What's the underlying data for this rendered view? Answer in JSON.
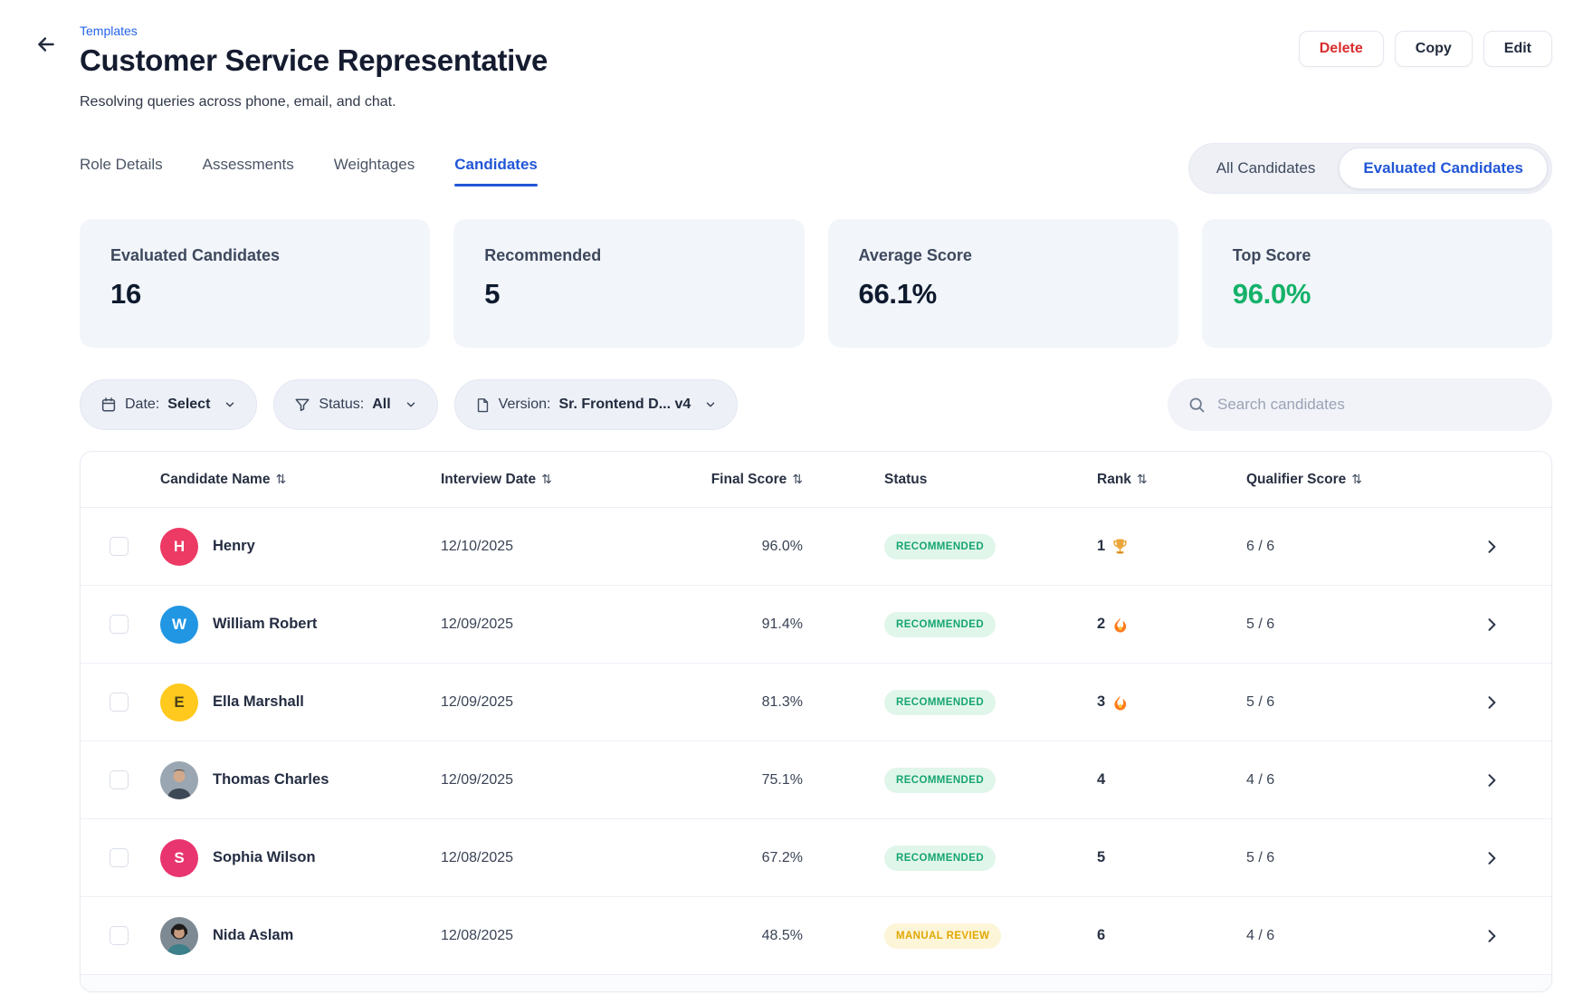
{
  "theme": {
    "accent_blue": "#2156d6",
    "link_blue": "#2563eb",
    "danger_red": "#d92c2c",
    "success_green": "#14b269",
    "dark_text": "#151c30"
  },
  "header": {
    "breadcrumb": "Templates",
    "title": "Customer Service Representative",
    "subtitle": "Resolving queries across phone, email, and chat.",
    "actions": {
      "delete": "Delete",
      "copy": "Copy",
      "edit": "Edit"
    }
  },
  "tabs": [
    {
      "label": "Role Details",
      "active": false
    },
    {
      "label": "Assessments",
      "active": false
    },
    {
      "label": "Weightages",
      "active": false
    },
    {
      "label": "Candidates",
      "active": true
    }
  ],
  "view_toggle": {
    "options": [
      {
        "label": "All Candidates",
        "active": false
      },
      {
        "label": "Evaluated Candidates",
        "active": true
      }
    ]
  },
  "stats": [
    {
      "label": "Evaluated Candidates",
      "value": "16",
      "color": "#0e1a2e"
    },
    {
      "label": "Recommended",
      "value": "5",
      "color": "#0e1a2e"
    },
    {
      "label": "Average Score",
      "value": "66.1%",
      "color": "#0e1a2e"
    },
    {
      "label": "Top Score",
      "value": "96.0%",
      "color": "#14b269"
    }
  ],
  "filters": {
    "date": {
      "label": "Date:",
      "value": "Select"
    },
    "status": {
      "label": "Status:",
      "value": "All"
    },
    "version": {
      "label": "Version:",
      "value": "Sr. Frontend D... v4"
    },
    "search_placeholder": "Search candidates"
  },
  "table": {
    "sort_glyph": "⇅",
    "columns": [
      {
        "label": "Candidate Name",
        "sortable": true
      },
      {
        "label": "Interview Date",
        "sortable": true
      },
      {
        "label": "Final Score",
        "sortable": true
      },
      {
        "label": "Status",
        "sortable": false
      },
      {
        "label": "Rank",
        "sortable": true
      },
      {
        "label": "Qualifier Score",
        "sortable": true
      }
    ],
    "status_styles": {
      "RECOMMENDED": {
        "bg": "#e1f6eb",
        "fg": "#16a571"
      },
      "MANUAL REVIEW": {
        "bg": "#fdf5d8",
        "fg": "#e0a800"
      }
    },
    "rows": [
      {
        "name": "Henry",
        "avatar": {
          "type": "initial",
          "letter": "H",
          "bg": "#ec3a64",
          "fg": "#ffffff"
        },
        "date": "12/10/2025",
        "score": "96.0%",
        "status": "RECOMMENDED",
        "rank": "1",
        "rank_icon": "trophy",
        "qualifier": "6 / 6"
      },
      {
        "name": "William Robert",
        "avatar": {
          "type": "initial",
          "letter": "W",
          "bg": "#2196e3",
          "fg": "#ffffff"
        },
        "date": "12/09/2025",
        "score": "91.4%",
        "status": "RECOMMENDED",
        "rank": "2",
        "rank_icon": "fire",
        "qualifier": "5 / 6"
      },
      {
        "name": "Ella Marshall",
        "avatar": {
          "type": "initial",
          "letter": "E",
          "bg": "#ffc91d",
          "fg": "#4c421a"
        },
        "date": "12/09/2025",
        "score": "81.3%",
        "status": "RECOMMENDED",
        "rank": "3",
        "rank_icon": "fire",
        "qualifier": "5 / 6"
      },
      {
        "name": "Thomas Charles",
        "avatar": {
          "type": "photo",
          "variant": "man"
        },
        "date": "12/09/2025",
        "score": "75.1%",
        "status": "RECOMMENDED",
        "rank": "4",
        "rank_icon": null,
        "qualifier": "4 / 6"
      },
      {
        "name": "Sophia Wilson",
        "avatar": {
          "type": "initial",
          "letter": "S",
          "bg": "#e8356f",
          "fg": "#ffffff"
        },
        "date": "12/08/2025",
        "score": "67.2%",
        "status": "RECOMMENDED",
        "rank": "5",
        "rank_icon": null,
        "qualifier": "5 / 6"
      },
      {
        "name": "Nida Aslam",
        "avatar": {
          "type": "photo",
          "variant": "woman"
        },
        "date": "12/08/2025",
        "score": "48.5%",
        "status": "MANUAL REVIEW",
        "rank": "6",
        "rank_icon": null,
        "qualifier": "4 / 6"
      }
    ]
  }
}
